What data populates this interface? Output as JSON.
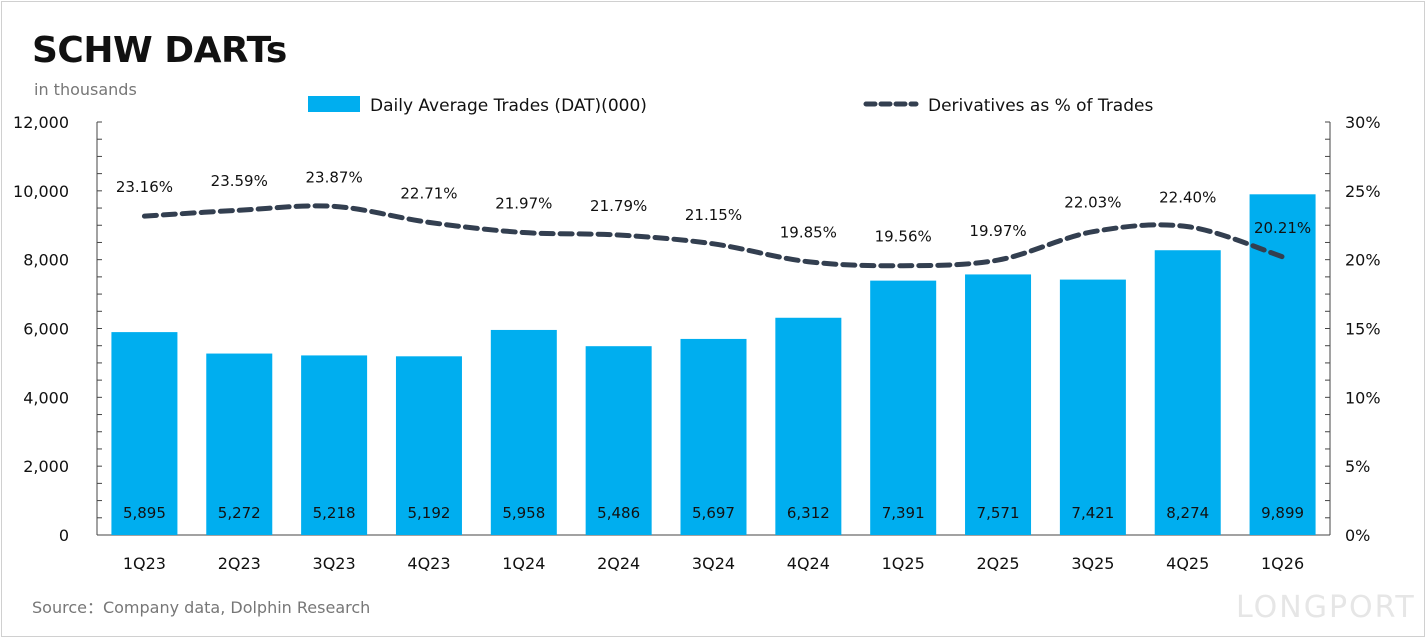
{
  "title": "SCHW DARTs",
  "subtitle": "in thousands",
  "source": "Source：Company data, Dolphin Research",
  "watermark": "LONGPORT",
  "colors": {
    "bar": "#00AEEF",
    "line": "#333F50"
  },
  "chart_data": {
    "type": "bar+line",
    "categories": [
      "1Q23",
      "2Q23",
      "3Q23",
      "4Q23",
      "1Q24",
      "2Q24",
      "3Q24",
      "4Q24",
      "1Q25",
      "2Q25",
      "3Q25",
      "4Q25",
      "1Q26"
    ],
    "series": [
      {
        "name": "Daily Average Trades (DAT)(000)",
        "type": "bar",
        "axis": "left",
        "values": [
          5895,
          5272,
          5218,
          5192,
          5958,
          5486,
          5697,
          6312,
          7391,
          7571,
          7421,
          8274,
          9899
        ],
        "labels": [
          "5,895",
          "5,272",
          "5,218",
          "5,192",
          "5,958",
          "5,486",
          "5,697",
          "6,312",
          "7,391",
          "7,571",
          "7,421",
          "8,274",
          "9,899"
        ]
      },
      {
        "name": "Derivatives as % of Trades",
        "type": "line",
        "style": "dashed",
        "axis": "right",
        "values": [
          23.16,
          23.59,
          23.87,
          22.71,
          21.97,
          21.79,
          21.15,
          19.85,
          19.56,
          19.97,
          22.03,
          22.4,
          20.21
        ],
        "labels": [
          "23.16%",
          "23.59%",
          "23.87%",
          "22.71%",
          "21.97%",
          "21.79%",
          "21.15%",
          "19.85%",
          "19.56%",
          "19.97%",
          "22.03%",
          "22.40%",
          "20.21%"
        ]
      }
    ],
    "y_left": {
      "min": 0,
      "max": 12000,
      "ticks": [
        "0",
        "2,000",
        "4,000",
        "6,000",
        "8,000",
        "10,000",
        "12,000"
      ]
    },
    "y_right": {
      "min": 0,
      "max": 30,
      "ticks": [
        "0%",
        "5%",
        "10%",
        "15%",
        "20%",
        "25%",
        "30%"
      ]
    },
    "legend": "top",
    "grid": false
  }
}
